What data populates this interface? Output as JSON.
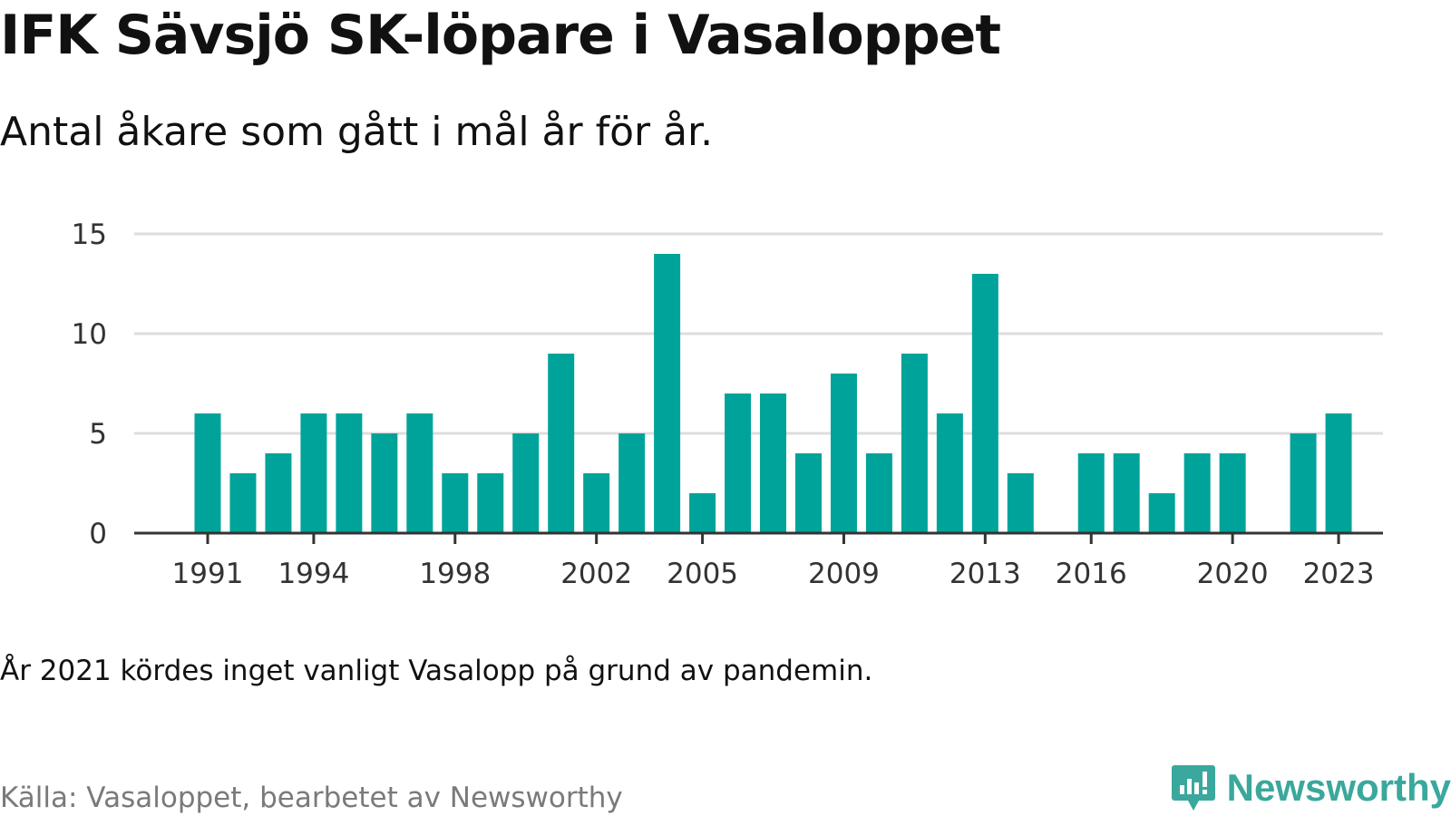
{
  "header": {
    "title": "IFK Sävsjö SK-löpare i Vasaloppet",
    "subtitle": "Antal åkare som gått i mål år för år."
  },
  "footer": {
    "note": "År 2021 kördes inget vanligt Vasalopp på grund av pandemin.",
    "source": "Källa: Vasaloppet, bearbetet av Newsworthy",
    "brand": "Newsworthy",
    "brand_icon": "newsworthy-logo-icon",
    "brand_color": "#3aa89c"
  },
  "chart_data": {
    "type": "bar",
    "x": [
      1991,
      1992,
      1993,
      1994,
      1995,
      1996,
      1997,
      1998,
      1999,
      2000,
      2001,
      2002,
      2003,
      2004,
      2005,
      2006,
      2007,
      2008,
      2009,
      2010,
      2011,
      2012,
      2013,
      2014,
      2015,
      2016,
      2017,
      2018,
      2019,
      2020,
      2021,
      2022,
      2023
    ],
    "values": [
      6,
      3,
      4,
      6,
      6,
      5,
      6,
      3,
      3,
      5,
      9,
      3,
      5,
      14,
      2,
      7,
      7,
      4,
      8,
      4,
      9,
      6,
      13,
      3,
      0,
      4,
      4,
      2,
      4,
      4,
      0,
      5,
      6
    ],
    "xticks": [
      1991,
      1994,
      1998,
      2002,
      2005,
      2009,
      2013,
      2016,
      2020,
      2023
    ],
    "yticks": [
      0,
      5,
      10,
      15
    ],
    "ylim": [
      0,
      15
    ],
    "grid": true,
    "bar_color": "#00a39a",
    "grid_color": "#dddddd",
    "axis_color": "#333333",
    "title": "IFK Sävsjö SK-löpare i Vasaloppet",
    "subtitle": "Antal åkare som gått i mål år för år."
  }
}
